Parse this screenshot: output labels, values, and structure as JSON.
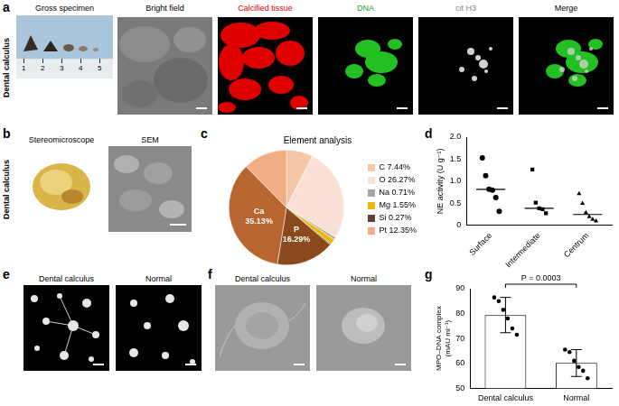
{
  "panels": {
    "a": {
      "letter": "a",
      "row_label": "Dental calculus",
      "titles": [
        "Gross specimen",
        "Bright field",
        "Calcified tissue",
        "DNA",
        "cit H3",
        "Merge"
      ],
      "ruler_labels": [
        "1",
        "2",
        "3",
        "4",
        "5"
      ]
    },
    "b": {
      "letter": "b",
      "row_label": "Dental calculus",
      "titles": [
        "Stereomicroscope",
        "SEM"
      ]
    },
    "c": {
      "letter": "c"
    },
    "d": {
      "letter": "d"
    },
    "e": {
      "letter": "e",
      "titles": [
        "Dental calculus",
        "Normal"
      ]
    },
    "f": {
      "letter": "f",
      "titles": [
        "Dental calculus",
        "Normal"
      ]
    },
    "g": {
      "letter": "g"
    }
  },
  "chart_data": [
    {
      "type": "pie",
      "title": "Element analysis",
      "categories": [
        "C",
        "O",
        "Na",
        "Mg",
        "Si",
        "P",
        "Ca",
        "Pt"
      ],
      "values": [
        7.44,
        26.27,
        0.71,
        1.55,
        0.27,
        16.29,
        35.13,
        12.35
      ],
      "value_labels": [
        "7.44%",
        "26.27%",
        "0.71%",
        "1.55%",
        "0.27%",
        "16.29%",
        "35.13%",
        "12.35%"
      ],
      "colors": [
        "#f5c6a8",
        "#f9e1d5",
        "#a6a6a6",
        "#f2b705",
        "#5c4033",
        "#8a4a1c",
        "#b86530",
        "#f0ae86"
      ],
      "legend": "right",
      "annotations": [
        {
          "category": "Ca",
          "lines": [
            "Ca",
            "35.13%"
          ]
        },
        {
          "category": "P",
          "lines": [
            "P",
            "16.29%"
          ]
        }
      ]
    },
    {
      "type": "scatter",
      "y_label": "NE activity (U g⁻¹)",
      "categories": [
        "Surface",
        "Intermediate",
        "Centrum"
      ],
      "groups": [
        {
          "category": "Surface",
          "marker": "circle",
          "values": [
            1.53,
            1.13,
            0.82,
            0.8,
            0.63,
            0.32
          ],
          "median": 0.82
        },
        {
          "category": "Intermediate",
          "marker": "square",
          "values": [
            1.27,
            0.52,
            0.39,
            0.37,
            0.28
          ],
          "median": 0.39
        },
        {
          "category": "Centrum",
          "marker": "triangle",
          "values": [
            0.72,
            0.5,
            0.29,
            0.2,
            0.14,
            0.1
          ],
          "median": 0.25
        }
      ],
      "color": "#000000",
      "grid": false,
      "ylim": [
        0,
        2
      ],
      "yticks": [
        0,
        0.5,
        {
          "value": 1,
          "label": "1.0"
        },
        1.5,
        {
          "value": 2,
          "label": "2.0"
        }
      ]
    },
    {
      "type": "bar",
      "y_label": [
        "MPO–DNA complex",
        "(mAU ml⁻¹)"
      ],
      "categories": [
        "Dental calculus",
        "Normal"
      ],
      "values": [
        79.4,
        60.1
      ],
      "errors": [
        7.1,
        5.4
      ],
      "points": [
        [
          86.5,
          85,
          81.5,
          78,
          74,
          71.5
        ],
        [
          65.5,
          64.5,
          61,
          58.5,
          57,
          54
        ]
      ],
      "color": "#ffffff",
      "grid": false,
      "ylim": [
        50,
        90
      ],
      "yticks": [
        50,
        60,
        70,
        80,
        90
      ],
      "annotations": [
        {
          "text": "P = 0.0003"
        }
      ]
    }
  ]
}
